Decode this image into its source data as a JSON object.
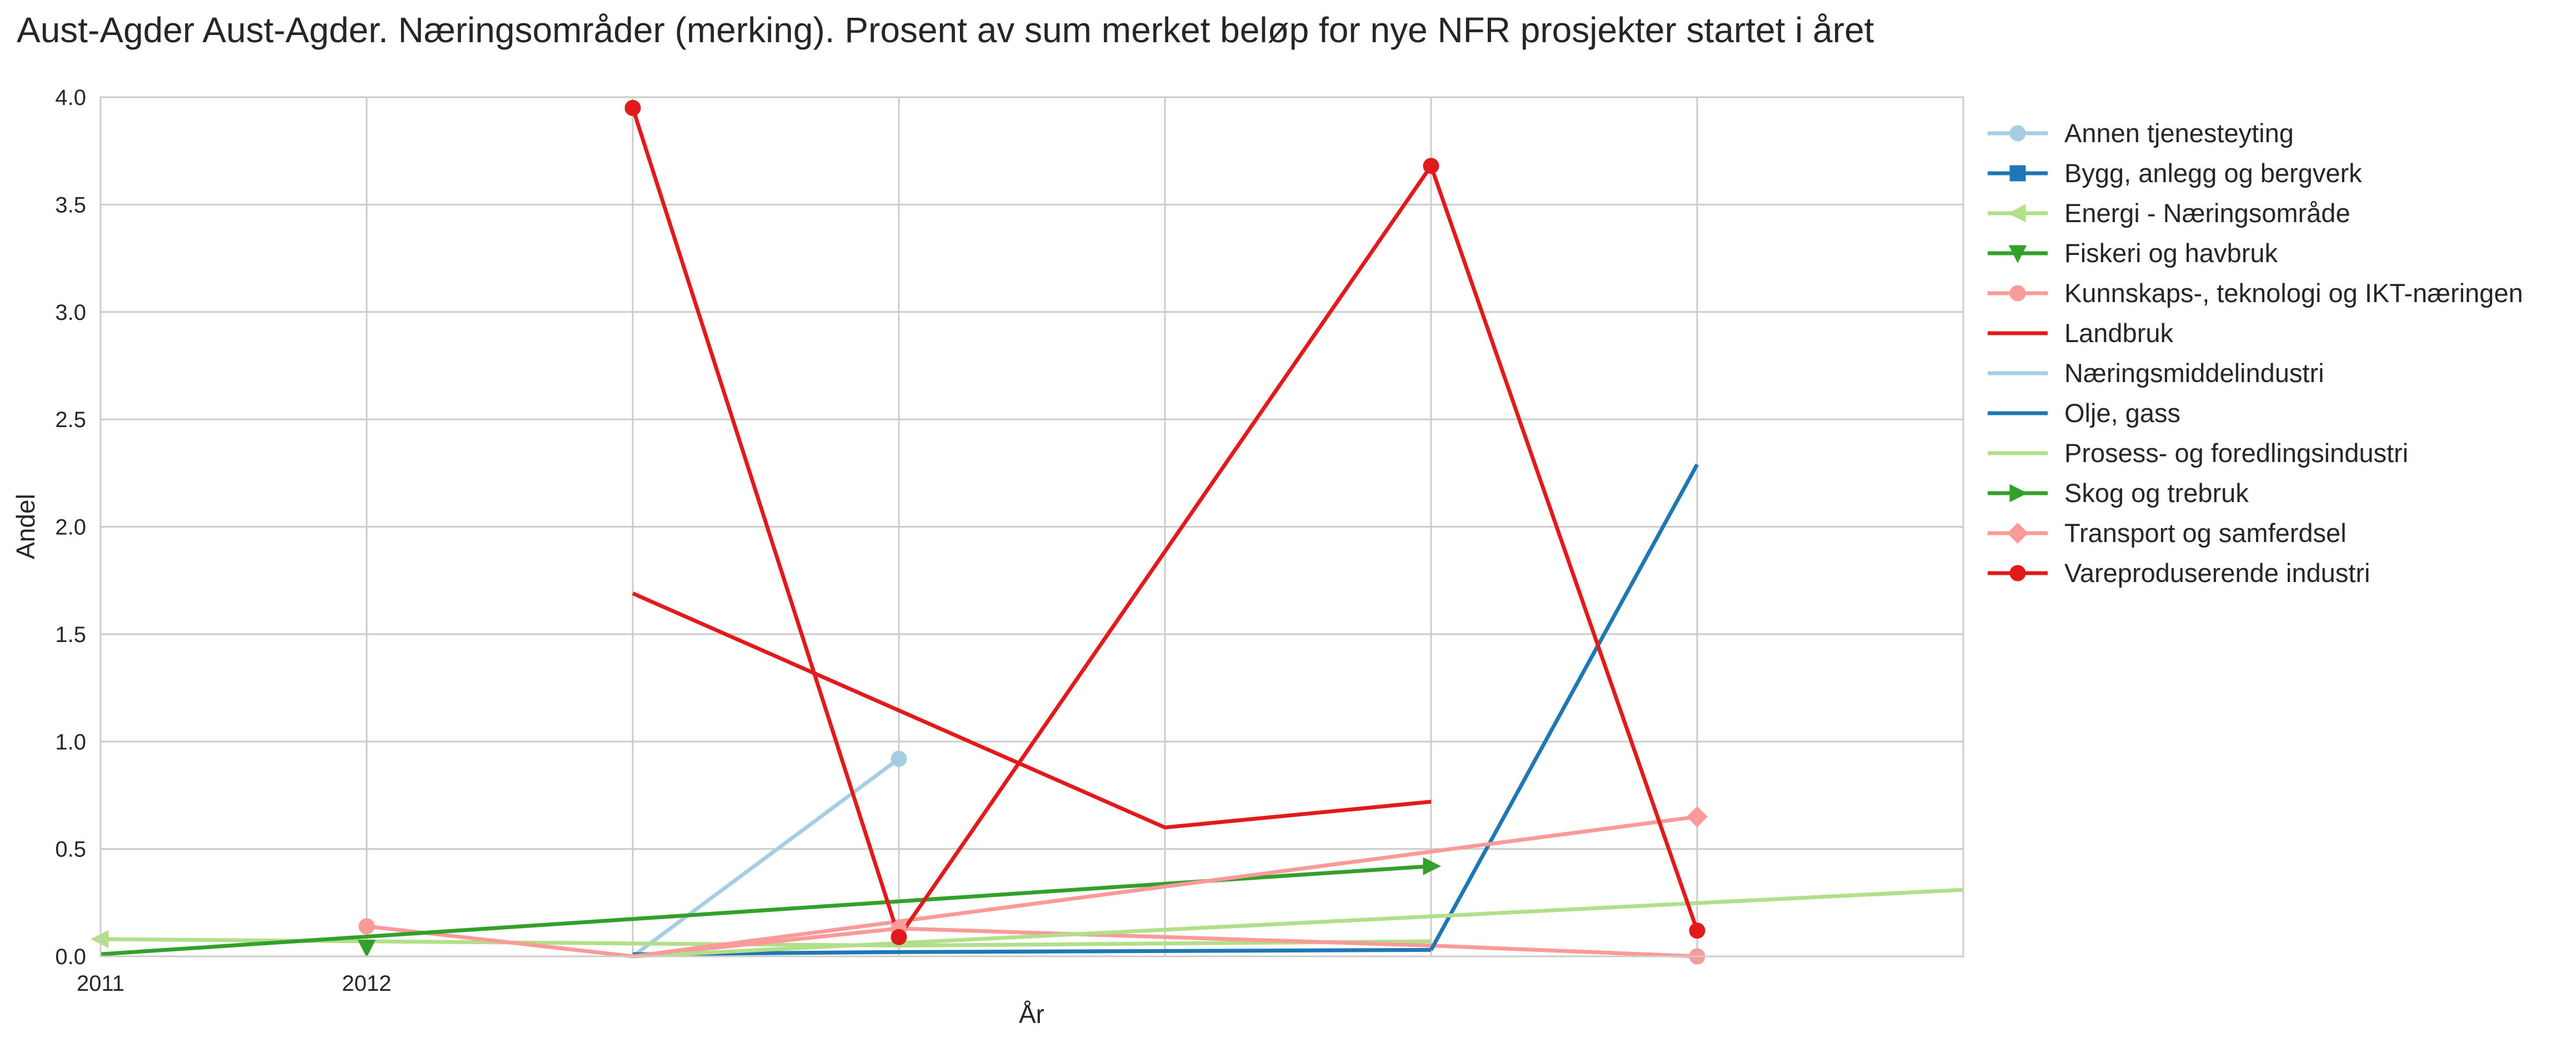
{
  "chart_data": {
    "type": "line",
    "title": "Aust-Agder Aust-Agder. Næringsområder (merking). Prosent av sum merket beløp for nye NFR prosjekter startet i året",
    "xlabel": "År",
    "ylabel": "Andel",
    "xlim": [
      2011,
      2018
    ],
    "ylim": [
      0,
      4.0
    ],
    "x_ticks": [
      2011,
      2012
    ],
    "x_tick_labels": [
      "2011",
      "2012"
    ],
    "y_ticks": [
      0.0,
      0.5,
      1.0,
      1.5,
      2.0,
      2.5,
      3.0,
      3.5,
      4.0
    ],
    "y_tick_labels": [
      "0.0",
      "0.5",
      "1.0",
      "1.5",
      "2.0",
      "2.5",
      "3.0",
      "3.5",
      "4.0"
    ],
    "x_gridlines": [
      2011,
      2012,
      2013,
      2014,
      2015,
      2016,
      2017
    ],
    "grid": true,
    "legend_position": "right",
    "series": [
      {
        "name": "Annen tjenesteyting",
        "color": "#a6cee3",
        "marker": "circle",
        "marker_at": [
          2014
        ],
        "x": [
          2013,
          2014
        ],
        "y": [
          0.0,
          0.92
        ]
      },
      {
        "name": "Bygg, anlegg og bergverk",
        "color": "#1f78b4",
        "marker": "square",
        "marker_at": [],
        "x": [
          2013,
          2014,
          2016
        ],
        "y": [
          0.01,
          0.02,
          0.03
        ]
      },
      {
        "name": "Energi - Næringsområde",
        "color": "#b2df8a",
        "marker": "triangle-left",
        "marker_at": [
          2011
        ],
        "x": [
          2011,
          2014,
          2016
        ],
        "y": [
          0.08,
          0.05,
          0.07
        ]
      },
      {
        "name": "Fiskeri og havbruk",
        "color": "#33a02c",
        "marker": "triangle-down",
        "marker_at": [
          2012
        ],
        "x": [
          2012
        ],
        "y": [
          0.04
        ]
      },
      {
        "name": "Kunnskaps-, teknologi og IKT-næringen",
        "color": "#fb9a99",
        "marker": "circle",
        "marker_at": [
          2012,
          2014,
          2017
        ],
        "x": [
          2012,
          2013,
          2014,
          2016,
          2017
        ],
        "y": [
          0.14,
          0.0,
          0.13,
          0.05,
          0.0
        ]
      },
      {
        "name": "Landbruk",
        "color": "#e31a1c",
        "marker": "none",
        "marker_at": [],
        "x": [
          2013,
          2015,
          2016
        ],
        "y": [
          1.69,
          0.6,
          0.72
        ]
      },
      {
        "name": "Næringsmiddelindustri",
        "color": "#a6cee3",
        "marker": "none",
        "marker_at": [],
        "x": [],
        "y": []
      },
      {
        "name": "Olje, gass",
        "color": "#1f78b4",
        "marker": "none",
        "marker_at": [],
        "x": [
          2016,
          2017
        ],
        "y": [
          0.03,
          2.29
        ]
      },
      {
        "name": "Prosess- og foredlingsindustri",
        "color": "#b2df8a",
        "marker": "none",
        "marker_at": [],
        "x": [
          2013,
          2018
        ],
        "y": [
          0.0,
          0.31
        ]
      },
      {
        "name": "Skog og trebruk",
        "color": "#33a02c",
        "marker": "triangle-right",
        "marker_at": [
          2016
        ],
        "x": [
          2011,
          2016
        ],
        "y": [
          0.01,
          0.42
        ]
      },
      {
        "name": "Transport og samferdsel",
        "color": "#fb9a99",
        "marker": "diamond",
        "marker_at": [
          2017
        ],
        "x": [
          2013,
          2017
        ],
        "y": [
          0.0,
          0.65
        ]
      },
      {
        "name": "Vareproduserende industri",
        "color": "#e31a1c",
        "marker": "circle",
        "marker_at": [
          2013,
          2014,
          2016,
          2017
        ],
        "x": [
          2013,
          2014,
          2016,
          2017
        ],
        "y": [
          3.95,
          0.09,
          3.68,
          0.12
        ]
      }
    ]
  }
}
